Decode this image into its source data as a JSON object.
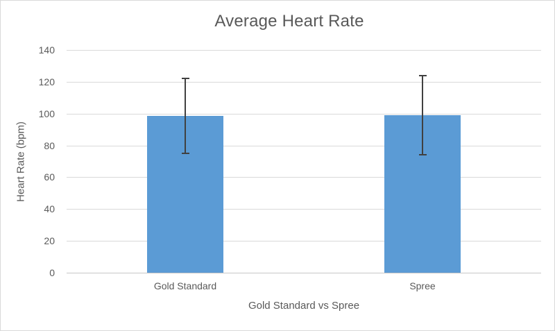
{
  "chart_data": {
    "type": "bar",
    "title": "Average Heart Rate",
    "xlabel": "Gold Standard vs Spree",
    "ylabel": "Heart Rate (bpm)",
    "categories": [
      "Gold Standard",
      "Spree"
    ],
    "values": [
      98.5,
      99
    ],
    "error_bars": {
      "plus": [
        23.5,
        25
      ],
      "minus": [
        23.5,
        25
      ]
    },
    "y_ticks": [
      0,
      20,
      40,
      60,
      80,
      100,
      120,
      140
    ],
    "ylim": [
      0,
      140
    ],
    "grid": true,
    "legend": false,
    "colors": {
      "bar": "#5B9BD5",
      "gridline": "#D9D9D9",
      "axis_line": "#C6C6C6",
      "text": "#595959",
      "error_bar": "#404040",
      "background": "#FFFFFF",
      "border": "#D9D9D9"
    }
  }
}
